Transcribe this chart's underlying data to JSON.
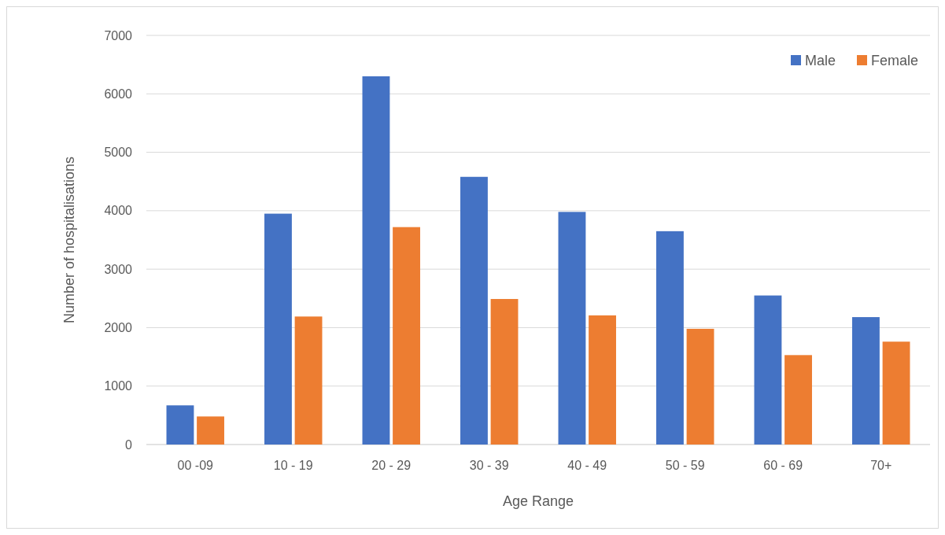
{
  "chart_data": {
    "type": "bar",
    "xlabel": "Age Range",
    "ylabel": "Number of hospitalisations",
    "categories": [
      "00 -09",
      "10 - 19",
      "20 - 29",
      "30 - 39",
      "40 - 49",
      "50 - 59",
      "60 - 69",
      "70+"
    ],
    "series": [
      {
        "name": "Male",
        "color": "#4472c4",
        "values": [
          670,
          3950,
          6300,
          4580,
          3980,
          3650,
          2550,
          2180
        ]
      },
      {
        "name": "Female",
        "color": "#ed7d31",
        "values": [
          480,
          2190,
          3720,
          2490,
          2210,
          1980,
          1530,
          1760
        ]
      }
    ],
    "ylim": [
      0,
      7000
    ],
    "yticks": [
      0,
      1000,
      2000,
      3000,
      4000,
      5000,
      6000,
      7000
    ],
    "grid": "y",
    "legend": "top right"
  }
}
